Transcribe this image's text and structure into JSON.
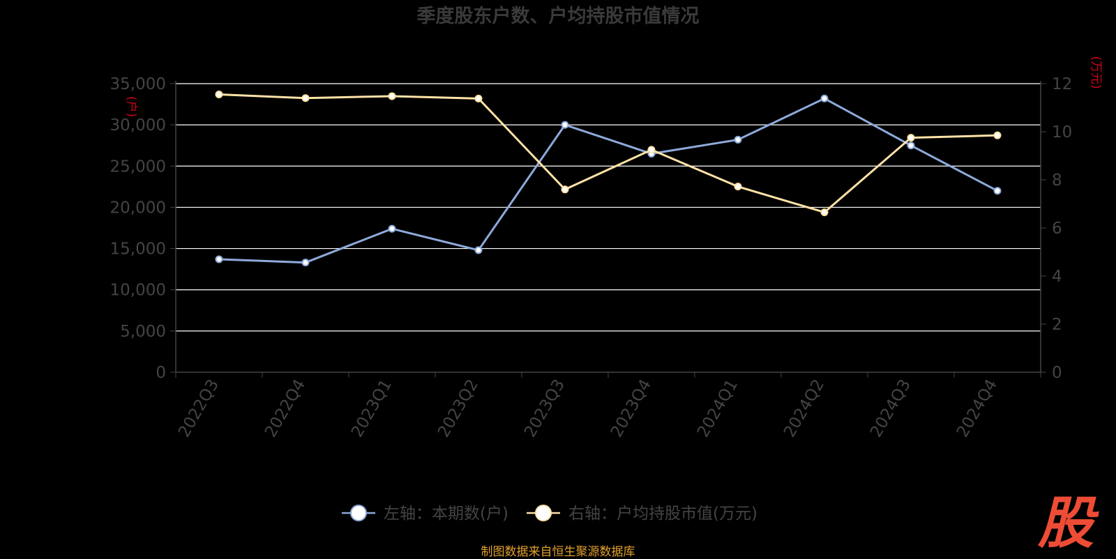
{
  "footer": "制图数据来自恒生聚源数据库",
  "logo_text": "股",
  "colors": {
    "background": "#000000",
    "title": "#3a3a3a",
    "axis_text": "#444444",
    "unit_red": "#d0021b",
    "grid": "#ffffff",
    "series_left": "#8eaadb",
    "series_right": "#ffe2a6",
    "footer": "#e3a02c",
    "logo": "#ee4c36"
  },
  "chart_data": {
    "type": "line",
    "title": "季度股东户数、户均持股市值情况",
    "left_unit": "(户)",
    "right_unit": "(万元)",
    "categories": [
      "2022Q3",
      "2022Q4",
      "2023Q1",
      "2023Q2",
      "2023Q3",
      "2023Q4",
      "2024Q1",
      "2024Q2",
      "2024Q3",
      "2024Q4"
    ],
    "left_axis": {
      "min": 0,
      "max": 35000,
      "ticks": [
        "0",
        "5,000",
        "10,000",
        "15,000",
        "20,000",
        "25,000",
        "30,000",
        "35,000"
      ]
    },
    "right_axis": {
      "min": 0,
      "max": 12,
      "ticks": [
        "0",
        "2",
        "4",
        "6",
        "8",
        "10",
        "12"
      ]
    },
    "series": [
      {
        "name": "左轴：本期数(户)",
        "axis": "left",
        "values": [
          13700,
          13300,
          17400,
          14800,
          30000,
          26500,
          28200,
          33200,
          27500,
          22000
        ]
      },
      {
        "name": "右轴：户均持股市值(万元)",
        "axis": "right",
        "values": [
          11.55,
          11.4,
          11.48,
          11.38,
          7.6,
          9.25,
          7.72,
          6.65,
          9.75,
          9.85
        ]
      }
    ],
    "grid": true,
    "legend_position": "bottom"
  }
}
